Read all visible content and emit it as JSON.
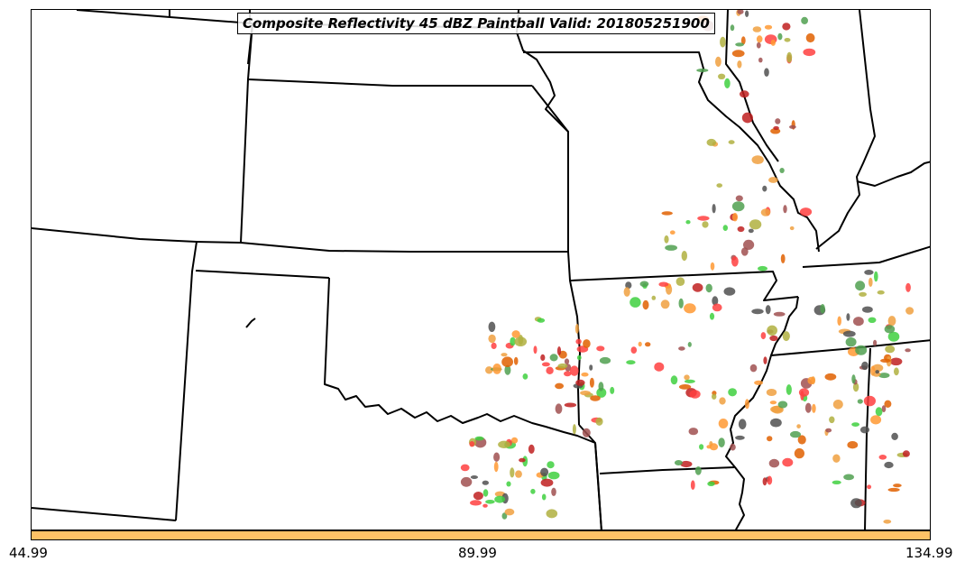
{
  "title": "Composite Reflectivity 45 dBZ Paintball Valid: 201805251900",
  "colorbar": {
    "color": "#FFC266",
    "ticks": [
      "44.99",
      "89.99",
      "134.99"
    ]
  },
  "member_colors": [
    "#FF4040",
    "#A05050",
    "#FF9933",
    "#E06000",
    "#40D040",
    "#50A050",
    "#B0B040",
    "#505050",
    "#C02020",
    "#F0A040"
  ]
}
